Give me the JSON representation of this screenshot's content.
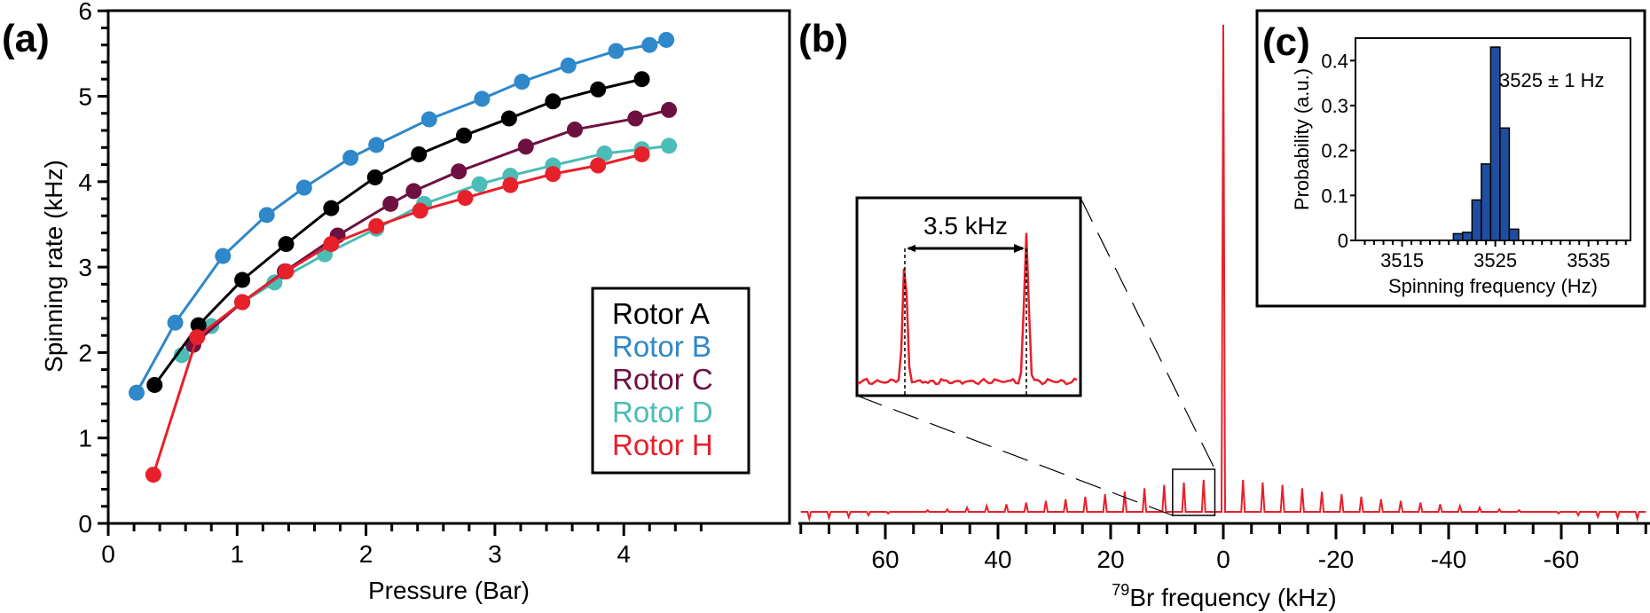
{
  "chart_data": [
    {
      "panel": "(a)",
      "type": "line",
      "xlabel": "Pressure (Bar)",
      "ylabel": "Spinning rate (kHz)",
      "xlim": [
        0,
        4.7
      ],
      "ylim": [
        0,
        6
      ],
      "xticks": [
        "0",
        "1",
        "2",
        "3",
        "4"
      ],
      "yticks": [
        "0",
        "1",
        "2",
        "3",
        "4",
        "5",
        "6"
      ],
      "legend_position": "bottom-right",
      "series": [
        {
          "name": "Rotor A",
          "color": "#000000",
          "x": [
            0.36,
            0.7,
            1.04,
            1.38,
            1.73,
            2.07,
            2.41,
            2.76,
            3.11,
            3.45,
            3.8,
            4.14
          ],
          "y": [
            1.62,
            2.32,
            2.85,
            3.27,
            3.69,
            4.05,
            4.32,
            4.54,
            4.74,
            4.94,
            5.08,
            5.2
          ]
        },
        {
          "name": "Rotor B",
          "color": "#2e88c9",
          "x": [
            0.22,
            0.52,
            0.89,
            1.23,
            1.52,
            1.88,
            2.08,
            2.49,
            2.9,
            3.21,
            3.57,
            3.94,
            4.2,
            4.33
          ],
          "y": [
            1.53,
            2.35,
            3.13,
            3.61,
            3.93,
            4.28,
            4.43,
            4.73,
            4.97,
            5.17,
            5.36,
            5.53,
            5.6,
            5.66
          ]
        },
        {
          "name": "Rotor C",
          "color": "#6d1141",
          "x": [
            0.66,
            1.04,
            1.37,
            1.78,
            2.19,
            2.37,
            2.72,
            3.24,
            3.62,
            4.09,
            4.35
          ],
          "y": [
            2.09,
            2.59,
            2.95,
            3.37,
            3.74,
            3.89,
            4.12,
            4.41,
            4.61,
            4.74,
            4.84
          ]
        },
        {
          "name": "Rotor D",
          "color": "#4bbcb6",
          "x": [
            0.57,
            0.8,
            1.04,
            1.29,
            1.68,
            2.08,
            2.45,
            2.88,
            3.12,
            3.45,
            3.85,
            4.14,
            4.35
          ],
          "y": [
            1.97,
            2.31,
            2.59,
            2.82,
            3.15,
            3.45,
            3.74,
            3.97,
            4.07,
            4.19,
            4.33,
            4.38,
            4.42
          ]
        },
        {
          "name": "Rotor H",
          "color": "#e8202a",
          "x": [
            0.35,
            0.69,
            1.04,
            1.38,
            1.73,
            2.08,
            2.42,
            2.77,
            3.12,
            3.45,
            3.8,
            4.14
          ],
          "y": [
            0.57,
            2.18,
            2.59,
            2.95,
            3.27,
            3.48,
            3.66,
            3.81,
            3.96,
            4.09,
            4.19,
            4.32
          ]
        }
      ]
    },
    {
      "panel": "(b)",
      "type": "line",
      "xlabel_sup": "79",
      "xlabel": "Br frequency (kHz)",
      "xlim": [
        75,
        -75
      ],
      "xticks": [
        "60",
        "40",
        "20",
        "0",
        "-20",
        "-40",
        "-60"
      ],
      "xtick_values": [
        60,
        40,
        20,
        0,
        -20,
        -40,
        -60
      ],
      "color": "#e8202a",
      "spinning_frequency_khz": 3.5,
      "center_peak_height": 5.9,
      "sideband_baseline": 0.12,
      "sideband_heights": [
        0.5,
        0.47,
        0.44,
        0.4,
        0.36,
        0.33,
        0.3,
        0.27,
        0.25,
        0.23,
        0.21,
        0.19,
        0.17,
        0.15,
        0.14,
        0.12,
        0.1,
        0.08,
        0.06,
        0.05,
        0.04
      ],
      "inset": {
        "label": "3.5 kHz",
        "peak_offsets_khz": [
          7.0,
          3.5
        ],
        "peak_heights": [
          0.8,
          0.98
        ]
      }
    },
    {
      "panel": "(c)",
      "type": "bar",
      "xlabel": "Spinning frequency (Hz)",
      "ylabel": "Probability (a.u.)",
      "xlim": [
        3510,
        3539.5
      ],
      "ylim": [
        0,
        0.44
      ],
      "xticks": [
        "3515",
        "3525",
        "3535"
      ],
      "xtick_values": [
        3515,
        3525,
        3535
      ],
      "yticks": [
        "0",
        "0.1",
        "0.2",
        "0.3",
        "0.4"
      ],
      "ytick_values": [
        0,
        0.1,
        0.2,
        0.3,
        0.4
      ],
      "annotation": "3525 ± 1 Hz",
      "bar_color": "#1f4e9e",
      "categories": [
        3521,
        3522,
        3523,
        3524,
        3525,
        3526,
        3527
      ],
      "values": [
        0.015,
        0.018,
        0.09,
        0.17,
        0.43,
        0.25,
        0.025
      ]
    }
  ]
}
